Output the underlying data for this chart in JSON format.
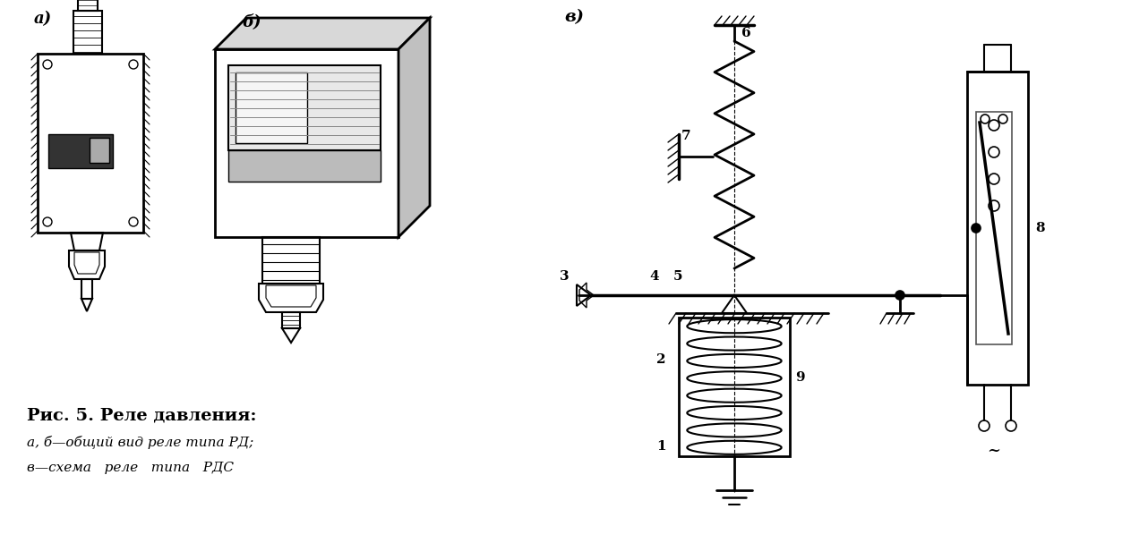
{
  "bg_color": "#ffffff",
  "lc": "#000000",
  "title_line1": "Рис. 5. Реле давления:",
  "title_line2": "а, б—общий вид реле типа РД;",
  "title_line3": "в—схема   реле   типа   РДС",
  "label_a": "а)",
  "label_b": "б)",
  "label_v": "в)",
  "figsize": [
    12.82,
    6.07
  ],
  "dpi": 100
}
